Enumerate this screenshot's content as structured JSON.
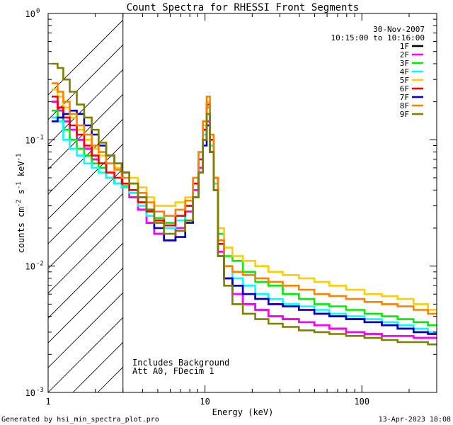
{
  "chart_data": {
    "type": "line",
    "title": "Count Spectra for RHESSI Front Segments",
    "xlabel": "Energy (keV)",
    "ylabel_parts": [
      "counts cm",
      "-2",
      " s",
      "-1",
      " keV",
      "-1"
    ],
    "xscale": "log",
    "yscale": "log",
    "xlim": [
      1,
      300
    ],
    "ylim": [
      0.001,
      1
    ],
    "x_ticks": [
      {
        "v": 1,
        "label": "1"
      },
      {
        "v": 10,
        "label": "10"
      },
      {
        "v": 100,
        "label": "100"
      }
    ],
    "y_ticks": [
      {
        "v": 0.001,
        "base": "10",
        "exp": "-3"
      },
      {
        "v": 0.01,
        "base": "10",
        "exp": "-2"
      },
      {
        "v": 0.1,
        "base": "10",
        "exp": "-1"
      },
      {
        "v": 1,
        "base": "10",
        "exp": "0"
      }
    ],
    "hatched_region": [
      1,
      3
    ],
    "legend_header": [
      "30-Nov-2007",
      "10:15:00 to 10:16:00"
    ],
    "annotations": [
      "Includes Background",
      "Att A0, FDecim 1"
    ],
    "series": [
      {
        "name": "1F",
        "color": "#000000",
        "values": [
          0.2,
          0.17,
          0.14,
          0.12,
          0.1,
          0.085,
          0.07,
          0.065,
          0.05,
          0.045,
          0.042,
          0.035,
          0.028,
          0.022,
          0.018,
          0.016,
          0.02,
          0.027,
          0.04,
          0.06,
          0.1,
          0.14,
          0.08,
          0.04,
          0.013,
          0.008,
          0.006,
          0.005,
          0.0045,
          0.004,
          0.0038,
          0.0036,
          0.0034,
          0.0032,
          0.003,
          0.0029,
          0.0028,
          0.0028,
          0.0027,
          0.0027
        ]
      },
      {
        "name": "2F",
        "color": "#ff00ff",
        "values": [
          0.2,
          0.17,
          0.14,
          0.12,
          0.1,
          0.085,
          0.07,
          0.065,
          0.05,
          0.045,
          0.042,
          0.035,
          0.028,
          0.022,
          0.018,
          0.016,
          0.02,
          0.027,
          0.04,
          0.06,
          0.1,
          0.14,
          0.08,
          0.04,
          0.013,
          0.008,
          0.006,
          0.005,
          0.0045,
          0.004,
          0.0038,
          0.0036,
          0.0034,
          0.0032,
          0.003,
          0.0029,
          0.0028,
          0.0028,
          0.0027,
          0.0027
        ]
      },
      {
        "name": "3F",
        "color": "#00ee00",
        "values": [
          0.17,
          0.15,
          0.12,
          0.1,
          0.085,
          0.075,
          0.065,
          0.06,
          0.05,
          0.045,
          0.043,
          0.038,
          0.032,
          0.028,
          0.024,
          0.022,
          0.025,
          0.03,
          0.045,
          0.07,
          0.12,
          0.18,
          0.09,
          0.045,
          0.018,
          0.012,
          0.011,
          0.009,
          0.0075,
          0.007,
          0.006,
          0.0055,
          0.005,
          0.0048,
          0.0045,
          0.0042,
          0.004,
          0.0038,
          0.0036,
          0.0034
        ]
      },
      {
        "name": "4F",
        "color": "#00ffff",
        "values": [
          0.15,
          0.14,
          0.1,
          0.085,
          0.075,
          0.065,
          0.06,
          0.055,
          0.05,
          0.045,
          0.042,
          0.038,
          0.03,
          0.025,
          0.022,
          0.02,
          0.023,
          0.03,
          0.045,
          0.07,
          0.11,
          0.16,
          0.09,
          0.045,
          0.015,
          0.01,
          0.008,
          0.007,
          0.006,
          0.0055,
          0.005,
          0.0048,
          0.0045,
          0.0042,
          0.004,
          0.0038,
          0.0036,
          0.0034,
          0.0032,
          0.003
        ]
      },
      {
        "name": "5F",
        "color": "#ffcc00",
        "values": [
          0.25,
          0.22,
          0.18,
          0.15,
          0.12,
          0.1,
          0.085,
          0.075,
          0.065,
          0.06,
          0.055,
          0.05,
          0.042,
          0.035,
          0.03,
          0.03,
          0.032,
          0.035,
          0.05,
          0.08,
          0.13,
          0.2,
          0.1,
          0.05,
          0.02,
          0.014,
          0.012,
          0.011,
          0.01,
          0.009,
          0.0085,
          0.008,
          0.0075,
          0.007,
          0.0065,
          0.006,
          0.0058,
          0.0055,
          0.005,
          0.0045
        ]
      },
      {
        "name": "6F",
        "color": "#ff0000",
        "values": [
          0.22,
          0.18,
          0.15,
          0.13,
          0.11,
          0.09,
          0.075,
          0.065,
          0.055,
          0.05,
          0.045,
          0.04,
          0.032,
          0.027,
          0.023,
          0.021,
          0.025,
          0.03,
          0.045,
          0.07,
          0.12,
          0.19,
          0.1,
          0.05,
          0.015,
          0.008,
          0.007,
          0.006,
          0.0055,
          0.005,
          0.0048,
          0.0045,
          0.0042,
          0.004,
          0.0038,
          0.0036,
          0.0034,
          0.0032,
          0.003,
          0.0029
        ]
      },
      {
        "name": "7F",
        "color": "#0000cc",
        "values": [
          0.14,
          0.15,
          0.16,
          0.17,
          0.16,
          0.13,
          0.11,
          0.09,
          0.075,
          0.065,
          0.055,
          0.045,
          0.035,
          0.028,
          0.02,
          0.016,
          0.017,
          0.022,
          0.035,
          0.055,
          0.09,
          0.13,
          0.08,
          0.04,
          0.012,
          0.008,
          0.007,
          0.006,
          0.0055,
          0.005,
          0.0048,
          0.0045,
          0.0042,
          0.004,
          0.0038,
          0.0036,
          0.0034,
          0.0032,
          0.003,
          0.0029
        ]
      },
      {
        "name": "8F",
        "color": "#ff7f00",
        "values": [
          0.28,
          0.24,
          0.2,
          0.16,
          0.13,
          0.11,
          0.09,
          0.08,
          0.065,
          0.058,
          0.05,
          0.045,
          0.038,
          0.032,
          0.027,
          0.025,
          0.028,
          0.033,
          0.05,
          0.08,
          0.14,
          0.22,
          0.11,
          0.05,
          0.016,
          0.01,
          0.009,
          0.0085,
          0.008,
          0.0075,
          0.007,
          0.0065,
          0.006,
          0.0058,
          0.0055,
          0.0052,
          0.005,
          0.0048,
          0.0045,
          0.0042
        ]
      },
      {
        "name": "9F",
        "color": "#7f7f00",
        "values": [
          0.4,
          0.37,
          0.3,
          0.24,
          0.19,
          0.15,
          0.12,
          0.095,
          0.075,
          0.065,
          0.055,
          0.045,
          0.035,
          0.028,
          0.022,
          0.018,
          0.019,
          0.023,
          0.035,
          0.055,
          0.1,
          0.16,
          0.08,
          0.04,
          0.012,
          0.007,
          0.005,
          0.0042,
          0.0038,
          0.0035,
          0.0033,
          0.0031,
          0.003,
          0.0029,
          0.0028,
          0.0027,
          0.0026,
          0.0025,
          0.0025,
          0.0024
        ]
      }
    ],
    "x": [
      1.1,
      1.2,
      1.3,
      1.45,
      1.6,
      1.8,
      2.0,
      2.2,
      2.5,
      2.8,
      3.1,
      3.5,
      4.0,
      4.5,
      5.0,
      6.0,
      7.0,
      8.0,
      8.8,
      9.4,
      10.0,
      10.5,
      11.0,
      11.7,
      12.5,
      14.0,
      16.0,
      19.0,
      23.0,
      28.0,
      35.0,
      45.0,
      55.0,
      70.0,
      90.0,
      120.0,
      150.0,
      190.0,
      240.0,
      290.0
    ]
  },
  "footer": {
    "left": "Generated by hsi_min_spectra_plot.pro",
    "right": "13-Apr-2023 18:08"
  }
}
